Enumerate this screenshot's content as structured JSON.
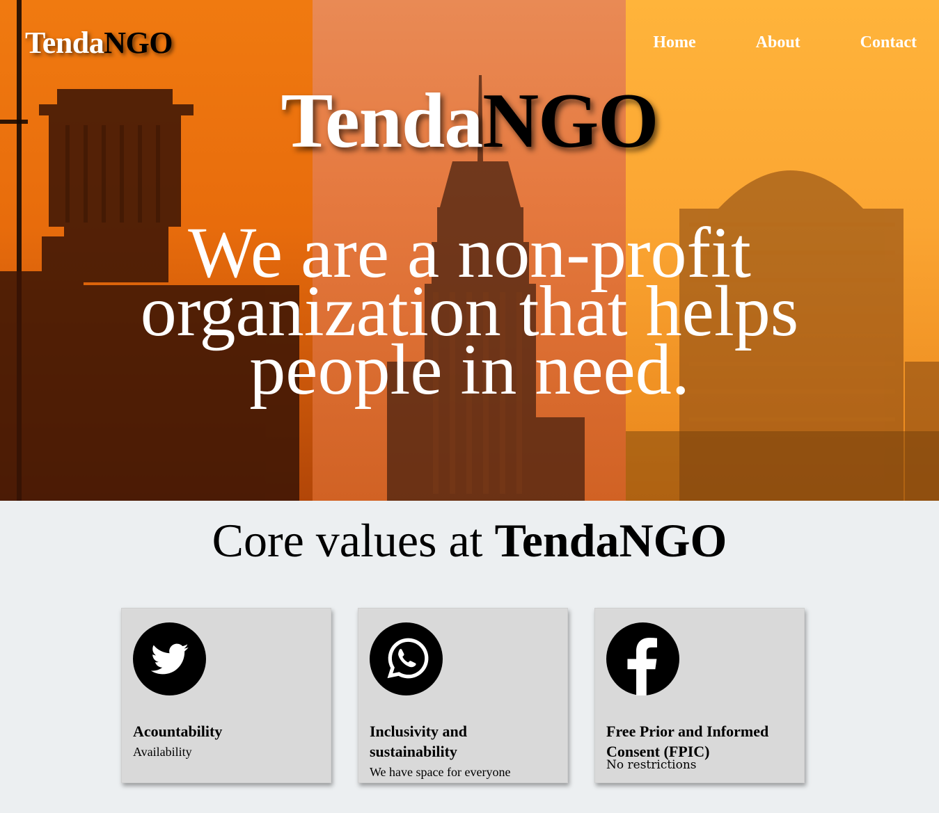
{
  "header": {
    "logo_part1": "Tenda",
    "logo_part2": "NGO",
    "nav": {
      "home": "Home",
      "about": "About",
      "contact": "Contact"
    }
  },
  "hero": {
    "brand_part1": "Tenda",
    "brand_part2": "NGO",
    "tagline": "We are a non-profit organization that helps people in need."
  },
  "values": {
    "title_prefix": "Core values at ",
    "title_brand": "TendaNGO",
    "cards": [
      {
        "icon": "twitter-icon",
        "title": "Acountability",
        "description": "Availability"
      },
      {
        "icon": "whatsapp-icon",
        "title": "Inclusivity and sustainability",
        "description": "We have space for everyone"
      },
      {
        "icon": "facebook-icon",
        "title": "Free Prior and Informed Consent (FPIC)",
        "description": "No restrictions"
      }
    ]
  },
  "colors": {
    "hero_left": "#e86c0c",
    "hero_mid": "#e5793f",
    "hero_right": "#fba532",
    "card_bg": "#d9d9d9",
    "page_bg": "#eceff1"
  }
}
